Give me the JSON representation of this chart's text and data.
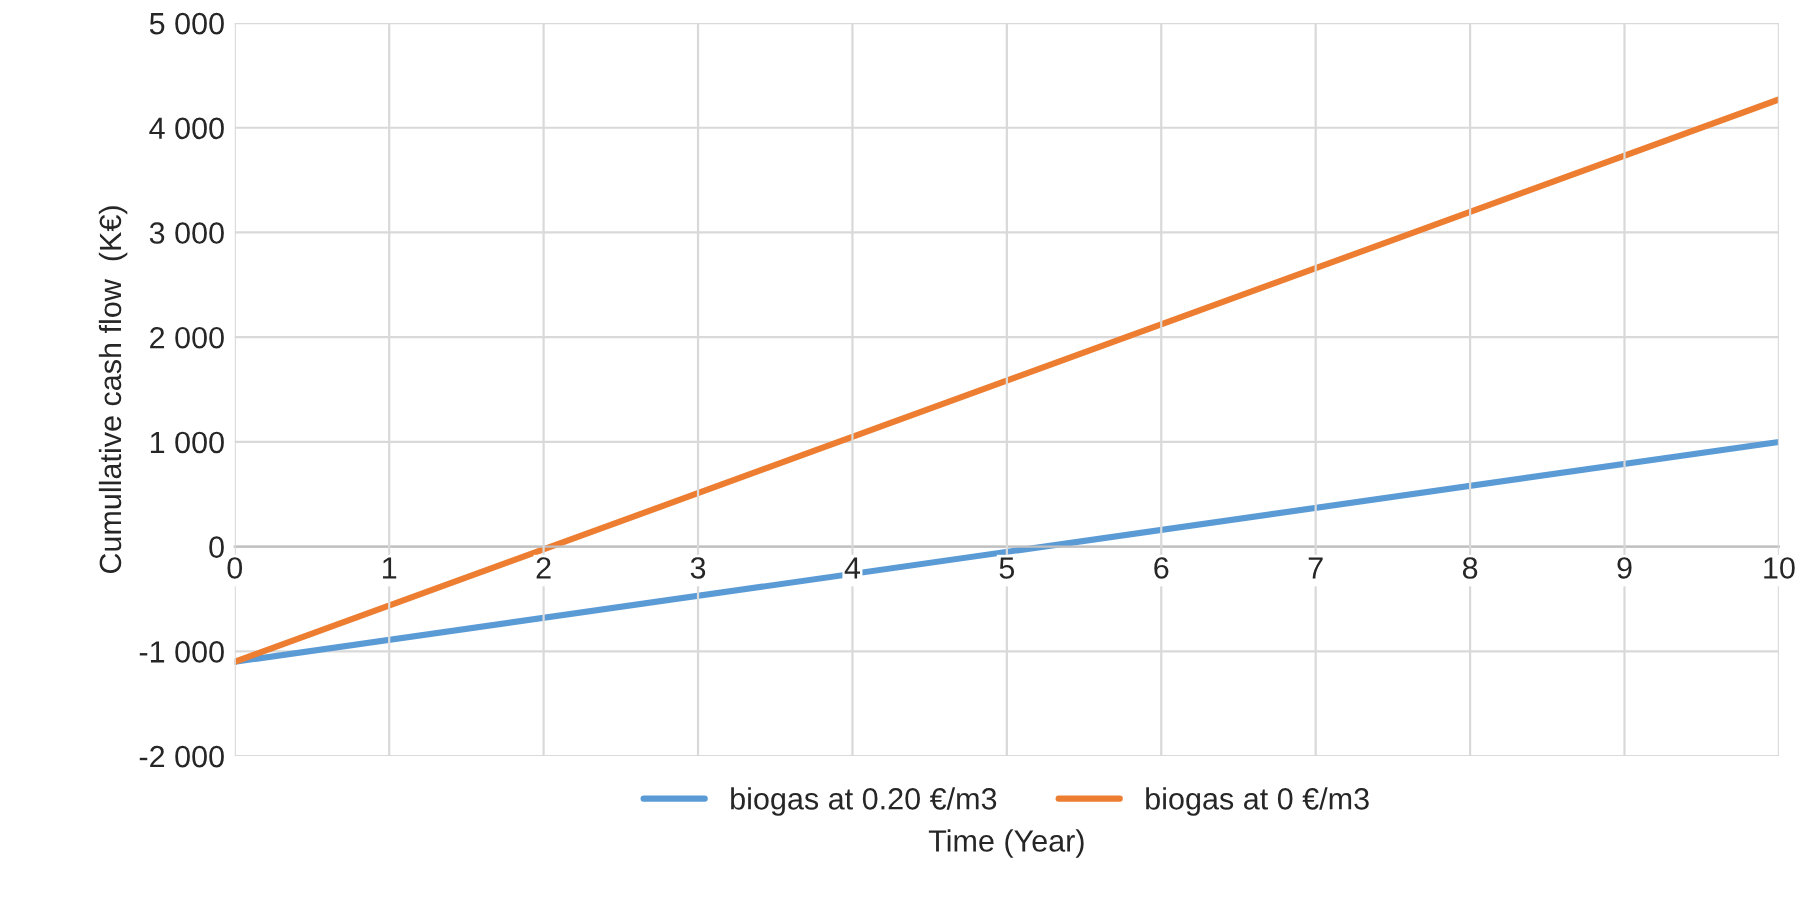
{
  "chart_data": {
    "type": "line",
    "xlabel": "Time (Year)",
    "ylabel": "Cumullative cash flow  (K€)",
    "x": [
      0,
      10
    ],
    "series": [
      {
        "name": "biogas at 0.20 €/m3",
        "color": "#5b9bd5",
        "values": [
          -1100,
          1000
        ]
      },
      {
        "name": "biogas at 0 €/m3",
        "color": "#ed7d31",
        "values": [
          -1100,
          4270
        ]
      }
    ],
    "xlim": [
      0,
      10
    ],
    "xticks": [
      0,
      1,
      2,
      3,
      4,
      5,
      6,
      7,
      8,
      9,
      10
    ],
    "ylim": [
      -2000,
      5000
    ],
    "yticks": [
      {
        "value": -2000,
        "label": "-2 000"
      },
      {
        "value": -1000,
        "label": "-1 000"
      },
      {
        "value": 0,
        "label": "0"
      },
      {
        "value": 1000,
        "label": "1 000"
      },
      {
        "value": 2000,
        "label": "2 000"
      },
      {
        "value": 3000,
        "label": "3 000"
      },
      {
        "value": 4000,
        "label": "4 000"
      },
      {
        "value": 5000,
        "label": "5 000"
      }
    ],
    "grid": true,
    "legend": "bottom",
    "marker": "none",
    "line_style": "solid"
  }
}
